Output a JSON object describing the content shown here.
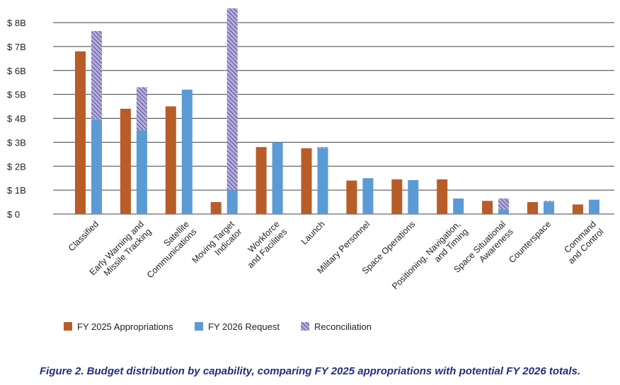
{
  "caption": "Figure 2. Budget distribution by capability, comparing FY 2025 appropriations with potential FY 2026 totals.",
  "colors": {
    "fy2025": "#b85c28",
    "fy2026": "#5b9bd5",
    "reconciliation_fill": "#b4aee0",
    "reconciliation_hatch": "#4a4278",
    "grid": "#404040"
  },
  "chart_data": {
    "type": "bar",
    "ylim": [
      0,
      8
    ],
    "ytick_values": [
      0,
      1,
      2,
      3,
      4,
      5,
      6,
      7,
      8
    ],
    "ytick_labels": [
      "$ 0",
      "$ 1B",
      "$ 2B",
      "$ 3B",
      "$ 4B",
      "$ 5B",
      "$ 6B",
      "$ 7B",
      "$ 8B"
    ],
    "grid": true,
    "legend_position": "bottom-left",
    "categories": [
      [
        "Classified"
      ],
      [
        "Early Warning and",
        "Missile Tracking"
      ],
      [
        "Satellite",
        "Communications"
      ],
      [
        "Moving Target",
        "Indicator"
      ],
      [
        "Workforce",
        "and Facilities"
      ],
      [
        "Launch"
      ],
      [
        "Military Personnel"
      ],
      [
        "Space Operations"
      ],
      [
        "Positioning, Navigation,",
        "and Timing"
      ],
      [
        "Space Situational",
        "Awareness"
      ],
      [
        "Counterspace"
      ],
      [
        "Command",
        "and Control"
      ]
    ],
    "series": [
      {
        "name": "FY 2025 Appropriations",
        "values": [
          6.8,
          4.4,
          4.5,
          0.5,
          2.8,
          2.75,
          1.4,
          1.45,
          1.45,
          0.55,
          0.5,
          0.4
        ]
      },
      {
        "name": "FY 2026 Request",
        "values": [
          3.95,
          3.5,
          5.2,
          1.0,
          3.0,
          2.75,
          1.5,
          1.42,
          0.65,
          0.2,
          0.5,
          0.6
        ]
      },
      {
        "name": "Reconciliation",
        "values": [
          3.7,
          1.8,
          0,
          7.6,
          0,
          0.05,
          0,
          0,
          0,
          0.45,
          0.05,
          0
        ]
      }
    ]
  }
}
